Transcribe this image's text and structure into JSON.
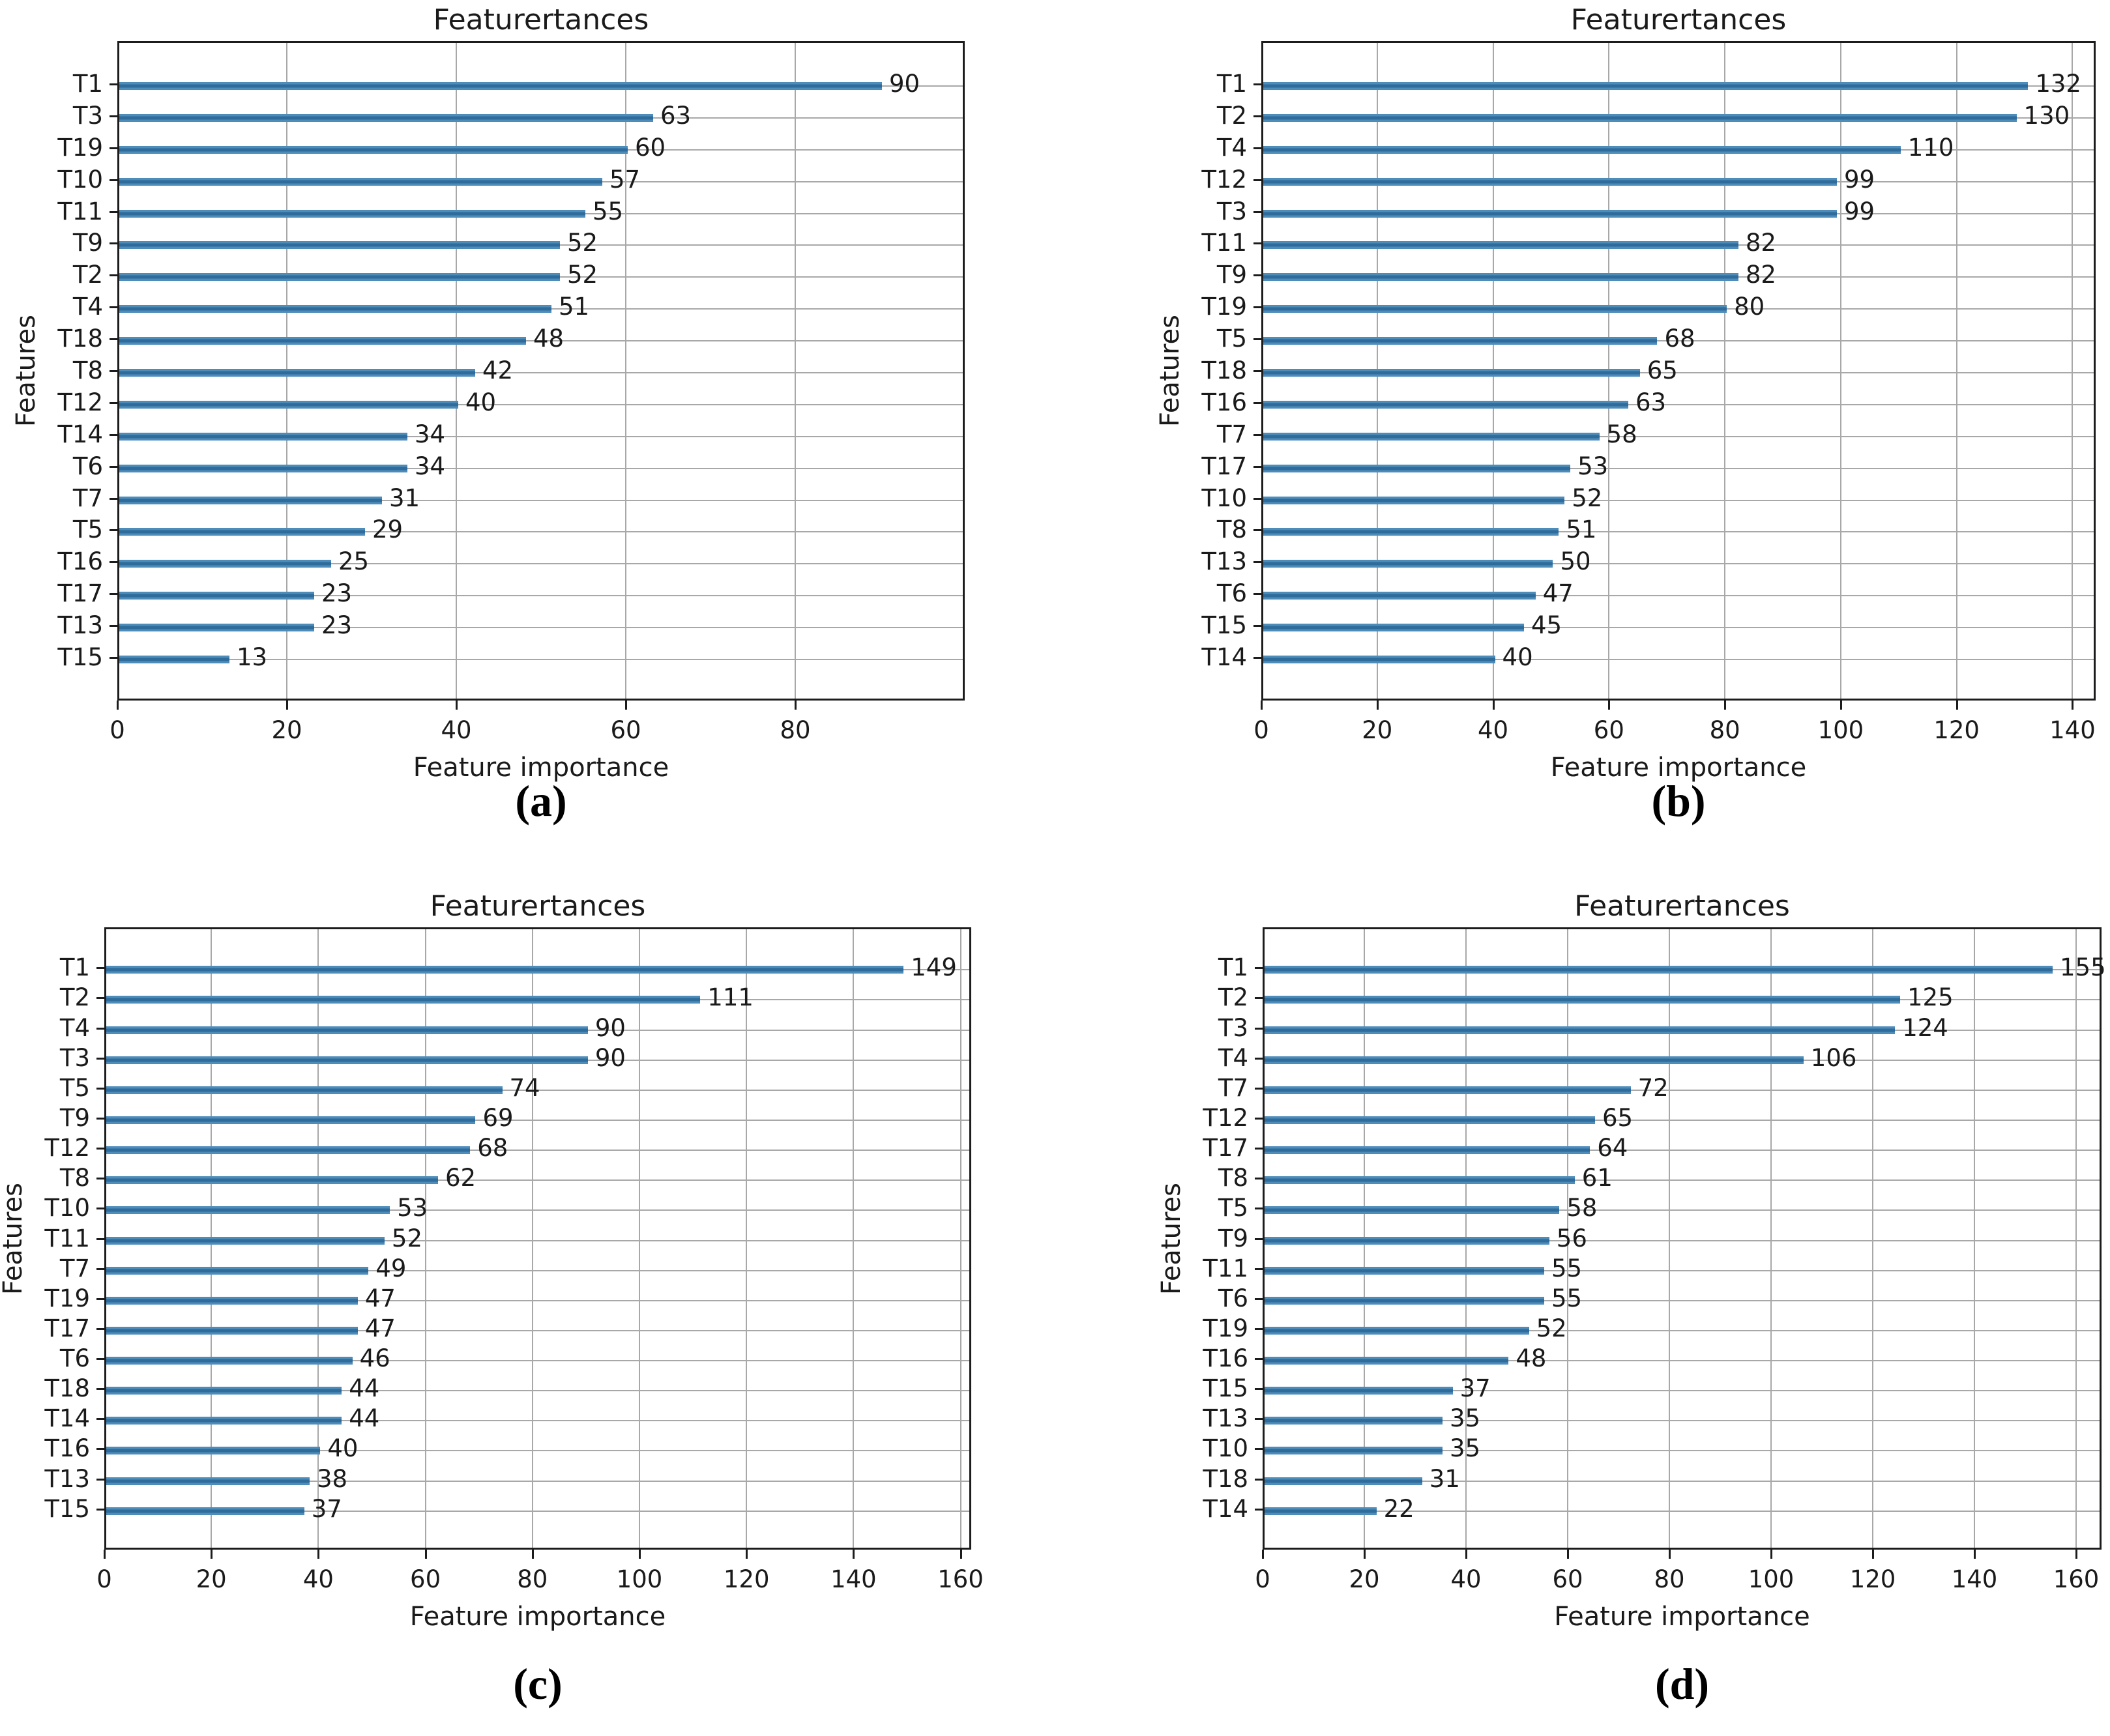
{
  "chart_data": [
    {
      "type": "bar",
      "orientation": "horizontal",
      "caption": "(a)",
      "title": "Featurertances",
      "xlabel": "Feature importance",
      "ylabel": "Features",
      "categories": [
        "T1",
        "T3",
        "T19",
        "T10",
        "T11",
        "T9",
        "T2",
        "T4",
        "T18",
        "T8",
        "T12",
        "T14",
        "T6",
        "T7",
        "T5",
        "T16",
        "T17",
        "T13",
        "T15"
      ],
      "values": [
        90,
        63,
        60,
        57,
        55,
        52,
        52,
        51,
        48,
        42,
        40,
        34,
        34,
        31,
        29,
        25,
        23,
        23,
        13
      ],
      "xticks": [
        0,
        20,
        40,
        60,
        80
      ],
      "xlim": [
        0,
        100
      ],
      "grid": true,
      "legend": false,
      "bar_color": "#4e8cba"
    },
    {
      "type": "bar",
      "orientation": "horizontal",
      "caption": "(b)",
      "title": "Featurertances",
      "xlabel": "Feature importance",
      "ylabel": "Features",
      "categories": [
        "T1",
        "T2",
        "T4",
        "T12",
        "T3",
        "T11",
        "T9",
        "T19",
        "T5",
        "T18",
        "T16",
        "T7",
        "T17",
        "T10",
        "T8",
        "T13",
        "T6",
        "T15",
        "T14"
      ],
      "values": [
        132,
        130,
        110,
        99,
        99,
        82,
        82,
        80,
        68,
        65,
        63,
        58,
        53,
        52,
        51,
        50,
        47,
        45,
        40
      ],
      "xticks": [
        0,
        20,
        40,
        60,
        80,
        100,
        120,
        140
      ],
      "xlim": [
        0,
        144
      ],
      "grid": true,
      "legend": false,
      "bar_color": "#4e8cba"
    },
    {
      "type": "bar",
      "orientation": "horizontal",
      "caption": "(c)",
      "title": "Featurertances",
      "xlabel": "Feature importance",
      "ylabel": "Features",
      "categories": [
        "T1",
        "T2",
        "T4",
        "T3",
        "T5",
        "T9",
        "T12",
        "T8",
        "T10",
        "T11",
        "T7",
        "T19",
        "T17",
        "T6",
        "T18",
        "T14",
        "T16",
        "T13",
        "T15"
      ],
      "values": [
        149,
        111,
        90,
        90,
        74,
        69,
        68,
        62,
        53,
        52,
        49,
        47,
        47,
        46,
        44,
        44,
        40,
        38,
        37
      ],
      "xticks": [
        0,
        20,
        40,
        60,
        80,
        100,
        120,
        140,
        160
      ],
      "xlim": [
        0,
        162
      ],
      "grid": true,
      "legend": false,
      "bar_color": "#4e8cba"
    },
    {
      "type": "bar",
      "orientation": "horizontal",
      "caption": "(d)",
      "title": "Featurertances",
      "xlabel": "Feature importance",
      "ylabel": "Features",
      "categories": [
        "T1",
        "T2",
        "T3",
        "T4",
        "T7",
        "T12",
        "T17",
        "T8",
        "T5",
        "T9",
        "T11",
        "T6",
        "T19",
        "T16",
        "T15",
        "T13",
        "T10",
        "T18",
        "T14"
      ],
      "values": [
        155,
        125,
        124,
        106,
        72,
        65,
        64,
        61,
        58,
        56,
        55,
        55,
        52,
        48,
        37,
        35,
        35,
        31,
        22
      ],
      "xticks": [
        0,
        20,
        40,
        60,
        80,
        100,
        120,
        140,
        160
      ],
      "xlim": [
        0,
        165
      ],
      "grid": true,
      "legend": false,
      "bar_color": "#4e8cba"
    }
  ]
}
